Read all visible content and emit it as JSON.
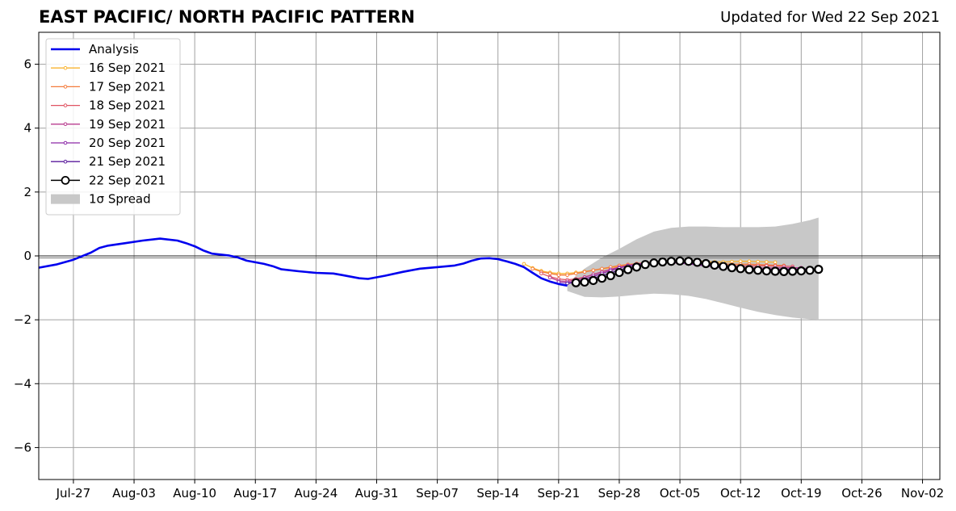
{
  "title": "EAST PACIFIC/ NORTH PACIFIC PATTERN",
  "updated": "Updated for Wed 22 Sep 2021",
  "chart_data": {
    "type": "line",
    "x_axis": {
      "type": "date",
      "range": [
        "2021-07-23",
        "2021-11-04"
      ],
      "ticks": [
        "2021-07-27",
        "2021-08-03",
        "2021-08-10",
        "2021-08-17",
        "2021-08-24",
        "2021-08-31",
        "2021-09-07",
        "2021-09-14",
        "2021-09-21",
        "2021-09-28",
        "2021-10-05",
        "2021-10-12",
        "2021-10-19",
        "2021-10-26",
        "2021-11-02"
      ],
      "tick_labels": [
        "Jul-27",
        "Aug-03",
        "Aug-10",
        "Aug-17",
        "Aug-24",
        "Aug-31",
        "Sep-07",
        "Sep-14",
        "Sep-21",
        "Sep-28",
        "Oct-05",
        "Oct-12",
        "Oct-19",
        "Oct-26",
        "Nov-02"
      ]
    },
    "y_axis": {
      "ylim": [
        -7,
        7
      ],
      "ticks": [
        -6,
        -4,
        -2,
        0,
        2,
        4,
        6
      ],
      "tick_labels": [
        "−6",
        "−4",
        "−2",
        "0",
        "2",
        "4",
        "6"
      ]
    },
    "grid": true,
    "zero_line": true,
    "legend": {
      "placement": "top-left",
      "entries": [
        "Analysis",
        "16 Sep 2021",
        "17 Sep 2021",
        "18 Sep 2021",
        "19 Sep 2021",
        "20 Sep 2021",
        "21 Sep 2021",
        "22 Sep 2021",
        "1σ Spread"
      ]
    },
    "analysis": {
      "name": "Analysis",
      "color": "#0000ee",
      "points": [
        [
          "2021-07-23",
          -0.37
        ],
        [
          "2021-07-25",
          -0.27
        ],
        [
          "2021-07-27",
          -0.12
        ],
        [
          "2021-07-29",
          0.1
        ],
        [
          "2021-07-30",
          0.25
        ],
        [
          "2021-07-31",
          0.32
        ],
        [
          "2021-08-02",
          0.4
        ],
        [
          "2021-08-04",
          0.48
        ],
        [
          "2021-08-06",
          0.54
        ],
        [
          "2021-08-08",
          0.48
        ],
        [
          "2021-08-09",
          0.4
        ],
        [
          "2021-08-10",
          0.3
        ],
        [
          "2021-08-11",
          0.17
        ],
        [
          "2021-08-12",
          0.07
        ],
        [
          "2021-08-14",
          0.01
        ],
        [
          "2021-08-15",
          -0.05
        ],
        [
          "2021-08-16",
          -0.15
        ],
        [
          "2021-08-18",
          -0.25
        ],
        [
          "2021-08-19",
          -0.32
        ],
        [
          "2021-08-20",
          -0.42
        ],
        [
          "2021-08-22",
          -0.48
        ],
        [
          "2021-08-24",
          -0.53
        ],
        [
          "2021-08-26",
          -0.55
        ],
        [
          "2021-08-27",
          -0.6
        ],
        [
          "2021-08-29",
          -0.7
        ],
        [
          "2021-08-30",
          -0.72
        ],
        [
          "2021-09-01",
          -0.62
        ],
        [
          "2021-09-03",
          -0.5
        ],
        [
          "2021-09-05",
          -0.4
        ],
        [
          "2021-09-07",
          -0.35
        ],
        [
          "2021-09-09",
          -0.3
        ],
        [
          "2021-09-10",
          -0.24
        ],
        [
          "2021-09-11",
          -0.15
        ],
        [
          "2021-09-12",
          -0.08
        ],
        [
          "2021-09-13",
          -0.07
        ],
        [
          "2021-09-14",
          -0.1
        ],
        [
          "2021-09-15",
          -0.17
        ],
        [
          "2021-09-16",
          -0.25
        ],
        [
          "2021-09-17",
          -0.35
        ],
        [
          "2021-09-18",
          -0.53
        ],
        [
          "2021-09-19",
          -0.7
        ],
        [
          "2021-09-20",
          -0.8
        ],
        [
          "2021-09-21",
          -0.88
        ],
        [
          "2021-09-22",
          -0.93
        ]
      ]
    },
    "spread": {
      "name": "1σ Spread",
      "color": "#c8c8c8",
      "x": [
        "2021-09-22",
        "2021-09-24",
        "2021-09-26",
        "2021-09-28",
        "2021-09-30",
        "2021-10-02",
        "2021-10-04",
        "2021-10-06",
        "2021-10-08",
        "2021-10-10",
        "2021-10-12",
        "2021-10-14",
        "2021-10-16",
        "2021-10-18",
        "2021-10-20",
        "2021-10-21"
      ],
      "upper": [
        -0.85,
        -0.4,
        -0.05,
        0.22,
        0.52,
        0.76,
        0.88,
        0.92,
        0.92,
        0.9,
        0.9,
        0.9,
        0.92,
        1.0,
        1.12,
        1.2
      ],
      "lower": [
        -1.1,
        -1.28,
        -1.3,
        -1.27,
        -1.22,
        -1.18,
        -1.2,
        -1.25,
        -1.35,
        -1.48,
        -1.62,
        -1.75,
        -1.85,
        -1.93,
        -1.98,
        -2.0
      ]
    },
    "forecasts": [
      {
        "name": "16 Sep 2021",
        "color": "#f9b32f",
        "marker": "small",
        "x": [
          "2021-09-17",
          "2021-09-18",
          "2021-09-19",
          "2021-09-20",
          "2021-09-21",
          "2021-09-22",
          "2021-09-23",
          "2021-09-24",
          "2021-09-25",
          "2021-09-26",
          "2021-09-27",
          "2021-09-28",
          "2021-09-29",
          "2021-09-30",
          "2021-10-01",
          "2021-10-02",
          "2021-10-03",
          "2021-10-04",
          "2021-10-05",
          "2021-10-06",
          "2021-10-07",
          "2021-10-08",
          "2021-10-09",
          "2021-10-10",
          "2021-10-11",
          "2021-10-12",
          "2021-10-13",
          "2021-10-14",
          "2021-10-15",
          "2021-10-16"
        ],
        "y": [
          -0.25,
          -0.38,
          -0.47,
          -0.52,
          -0.55,
          -0.55,
          -0.52,
          -0.49,
          -0.45,
          -0.41,
          -0.37,
          -0.32,
          -0.28,
          -0.25,
          -0.22,
          -0.19,
          -0.17,
          -0.15,
          -0.15,
          -0.15,
          -0.16,
          -0.18,
          -0.19,
          -0.19,
          -0.18,
          -0.17,
          -0.17,
          -0.18,
          -0.19,
          -0.2
        ]
      },
      {
        "name": "17 Sep 2021",
        "color": "#f47c3c",
        "marker": "small",
        "x": [
          "2021-09-18",
          "2021-09-19",
          "2021-09-20",
          "2021-09-21",
          "2021-09-22",
          "2021-09-23",
          "2021-09-24",
          "2021-09-25",
          "2021-09-26",
          "2021-09-27",
          "2021-09-28",
          "2021-09-29",
          "2021-09-30",
          "2021-10-01",
          "2021-10-02",
          "2021-10-03",
          "2021-10-04",
          "2021-10-05",
          "2021-10-06",
          "2021-10-07",
          "2021-10-08",
          "2021-10-09",
          "2021-10-10",
          "2021-10-11",
          "2021-10-12",
          "2021-10-13",
          "2021-10-14",
          "2021-10-15",
          "2021-10-16",
          "2021-10-17"
        ],
        "y": [
          -0.4,
          -0.5,
          -0.55,
          -0.6,
          -0.6,
          -0.55,
          -0.5,
          -0.45,
          -0.4,
          -0.35,
          -0.3,
          -0.27,
          -0.24,
          -0.21,
          -0.19,
          -0.17,
          -0.16,
          -0.16,
          -0.17,
          -0.19,
          -0.21,
          -0.23,
          -0.25,
          -0.26,
          -0.26,
          -0.26,
          -0.27,
          -0.28,
          -0.29,
          -0.3
        ]
      },
      {
        "name": "18 Sep 2021",
        "color": "#e05463",
        "marker": "small",
        "x": [
          "2021-09-19",
          "2021-09-20",
          "2021-09-21",
          "2021-09-22",
          "2021-09-23",
          "2021-09-24",
          "2021-09-25",
          "2021-09-26",
          "2021-09-27",
          "2021-09-28",
          "2021-09-29",
          "2021-09-30",
          "2021-10-01",
          "2021-10-02",
          "2021-10-03",
          "2021-10-04",
          "2021-10-05",
          "2021-10-06",
          "2021-10-07",
          "2021-10-08",
          "2021-10-09",
          "2021-10-10",
          "2021-10-11",
          "2021-10-12",
          "2021-10-13",
          "2021-10-14",
          "2021-10-15",
          "2021-10-16",
          "2021-10-17",
          "2021-10-18"
        ],
        "y": [
          -0.55,
          -0.65,
          -0.72,
          -0.75,
          -0.72,
          -0.66,
          -0.58,
          -0.5,
          -0.42,
          -0.36,
          -0.3,
          -0.26,
          -0.23,
          -0.21,
          -0.2,
          -0.2,
          -0.21,
          -0.23,
          -0.25,
          -0.27,
          -0.29,
          -0.3,
          -0.31,
          -0.31,
          -0.31,
          -0.31,
          -0.31,
          -0.32,
          -0.32,
          -0.33
        ]
      },
      {
        "name": "19 Sep 2021",
        "color": "#b83c8f",
        "marker": "small",
        "x": [
          "2021-09-20",
          "2021-09-21",
          "2021-09-22",
          "2021-09-23",
          "2021-09-24",
          "2021-09-25",
          "2021-09-26",
          "2021-09-27",
          "2021-09-28",
          "2021-09-29",
          "2021-09-30",
          "2021-10-01",
          "2021-10-02",
          "2021-10-03",
          "2021-10-04",
          "2021-10-05",
          "2021-10-06",
          "2021-10-07",
          "2021-10-08",
          "2021-10-09",
          "2021-10-10",
          "2021-10-11",
          "2021-10-12",
          "2021-10-13",
          "2021-10-14",
          "2021-10-15",
          "2021-10-16",
          "2021-10-17",
          "2021-10-18",
          "2021-10-19"
        ],
        "y": [
          -0.68,
          -0.78,
          -0.8,
          -0.75,
          -0.67,
          -0.58,
          -0.5,
          -0.42,
          -0.35,
          -0.3,
          -0.26,
          -0.23,
          -0.21,
          -0.2,
          -0.21,
          -0.23,
          -0.25,
          -0.28,
          -0.31,
          -0.34,
          -0.36,
          -0.37,
          -0.37,
          -0.37,
          -0.38,
          -0.38,
          -0.38,
          -0.37,
          -0.37,
          -0.37
        ]
      },
      {
        "name": "20 Sep 2021",
        "color": "#8c29a8",
        "marker": "small",
        "x": [
          "2021-09-21",
          "2021-09-22",
          "2021-09-23",
          "2021-09-24",
          "2021-09-25",
          "2021-09-26",
          "2021-09-27",
          "2021-09-28",
          "2021-09-29",
          "2021-09-30",
          "2021-10-01",
          "2021-10-02",
          "2021-10-03",
          "2021-10-04",
          "2021-10-05",
          "2021-10-06",
          "2021-10-07",
          "2021-10-08",
          "2021-10-09",
          "2021-10-10",
          "2021-10-11",
          "2021-10-12",
          "2021-10-13",
          "2021-10-14",
          "2021-10-15",
          "2021-10-16",
          "2021-10-17",
          "2021-10-18",
          "2021-10-19",
          "2021-10-20"
        ],
        "y": [
          -0.82,
          -0.85,
          -0.8,
          -0.72,
          -0.64,
          -0.55,
          -0.46,
          -0.38,
          -0.31,
          -0.26,
          -0.22,
          -0.2,
          -0.19,
          -0.2,
          -0.22,
          -0.25,
          -0.28,
          -0.31,
          -0.34,
          -0.37,
          -0.39,
          -0.4,
          -0.41,
          -0.42,
          -0.42,
          -0.42,
          -0.42,
          -0.41,
          -0.41,
          -0.4
        ]
      },
      {
        "name": "21 Sep 2021",
        "color": "#5a1a9c",
        "marker": "small",
        "x": [
          "2021-09-22",
          "2021-09-23",
          "2021-09-24",
          "2021-09-25",
          "2021-09-26",
          "2021-09-27",
          "2021-09-28",
          "2021-09-29",
          "2021-09-30",
          "2021-10-01",
          "2021-10-02",
          "2021-10-03",
          "2021-10-04",
          "2021-10-05",
          "2021-10-06",
          "2021-10-07",
          "2021-10-08",
          "2021-10-09",
          "2021-10-10",
          "2021-10-11",
          "2021-10-12",
          "2021-10-13",
          "2021-10-14",
          "2021-10-15",
          "2021-10-16",
          "2021-10-17",
          "2021-10-18",
          "2021-10-19",
          "2021-10-20",
          "2021-10-21"
        ],
        "y": [
          -0.86,
          -0.83,
          -0.77,
          -0.7,
          -0.62,
          -0.53,
          -0.45,
          -0.37,
          -0.3,
          -0.25,
          -0.21,
          -0.19,
          -0.18,
          -0.19,
          -0.21,
          -0.24,
          -0.27,
          -0.3,
          -0.33,
          -0.36,
          -0.38,
          -0.4,
          -0.42,
          -0.43,
          -0.44,
          -0.45,
          -0.45,
          -0.44,
          -0.43,
          -0.42
        ]
      },
      {
        "name": "22 Sep 2021",
        "color": "#000000",
        "marker": "circle",
        "x": [
          "2021-09-23",
          "2021-09-24",
          "2021-09-25",
          "2021-09-26",
          "2021-09-27",
          "2021-09-28",
          "2021-09-29",
          "2021-09-30",
          "2021-10-01",
          "2021-10-02",
          "2021-10-03",
          "2021-10-04",
          "2021-10-05",
          "2021-10-06",
          "2021-10-07",
          "2021-10-08",
          "2021-10-09",
          "2021-10-10",
          "2021-10-11",
          "2021-10-12",
          "2021-10-13",
          "2021-10-14",
          "2021-10-15",
          "2021-10-16",
          "2021-10-17",
          "2021-10-18",
          "2021-10-19",
          "2021-10-20",
          "2021-10-21"
        ],
        "y": [
          -0.84,
          -0.82,
          -0.77,
          -0.7,
          -0.62,
          -0.52,
          -0.43,
          -0.35,
          -0.27,
          -0.22,
          -0.19,
          -0.17,
          -0.16,
          -0.17,
          -0.2,
          -0.24,
          -0.29,
          -0.33,
          -0.37,
          -0.4,
          -0.43,
          -0.45,
          -0.47,
          -0.48,
          -0.49,
          -0.48,
          -0.47,
          -0.45,
          -0.42
        ]
      }
    ]
  }
}
